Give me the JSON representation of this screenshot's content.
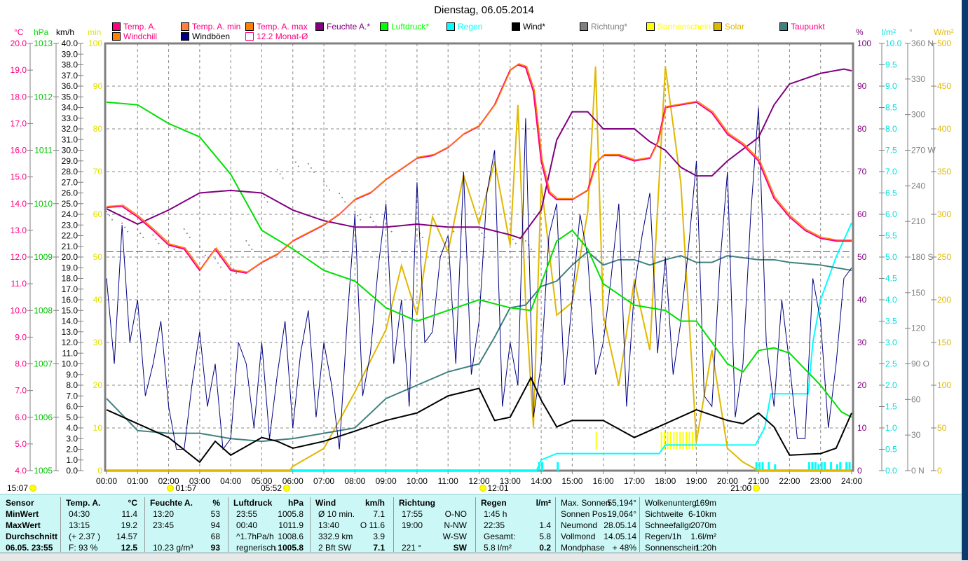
{
  "title": "Dienstag, 06.05.2014",
  "legend": [
    {
      "label": "Temp. A.",
      "color": "#ff0080",
      "text": "#ff0080"
    },
    {
      "label": "Temp. A. min",
      "color": "#ff8040",
      "text": "#ff0080"
    },
    {
      "label": "Temp. A. max",
      "color": "#ff8000",
      "text": "#ff0080"
    },
    {
      "label": "Feuchte A.*",
      "color": "#800080",
      "text": "#800080"
    },
    {
      "label": "Luftdruck*",
      "color": "#00ff00",
      "text": "#00ff00"
    },
    {
      "label": "Regen",
      "color": "#00ffff",
      "text": "#00ffff"
    },
    {
      "label": "Wind*",
      "color": "#000000",
      "text": "#000000"
    },
    {
      "label": "Richtung*",
      "color": "#808080",
      "text": "#808080"
    },
    {
      "label": "Sonnenschein",
      "color": "#ffff00",
      "text": "#ffff00"
    },
    {
      "label": "Solar",
      "color": "#e0b800",
      "text": "#e0b800"
    },
    {
      "label": "Taupunkt",
      "color": "#408080",
      "text": "#ff0080"
    },
    {
      "label": "Windchill",
      "color": "#ff8000",
      "text": "#ff0080"
    },
    {
      "label": "Windböen",
      "color": "#000080",
      "text": "#000000"
    },
    {
      "label": "12.2 Monat-Ø",
      "color": "#ffffff",
      "text": "#ff0080"
    }
  ],
  "units": {
    "c": "°C",
    "hpa": "hPa",
    "kmh": "km/h",
    "min": "min",
    "pct": "%",
    "lm2": "l/m²",
    "deg": "°",
    "wm2": "W/m²"
  },
  "chart_data": {
    "type": "line",
    "title": "Dienstag, 06.05.2014",
    "x_range": [
      0,
      24
    ],
    "x_ticks": [
      "00:00",
      "01:00",
      "02:00",
      "03:00",
      "04:00",
      "05:00",
      "06:00",
      "07:00",
      "08:00",
      "09:00",
      "10:00",
      "11:00",
      "12:00",
      "13:00",
      "14:00",
      "15:00",
      "16:00",
      "17:00",
      "18:00",
      "19:00",
      "20:00",
      "21:00",
      "22:00",
      "23:00",
      "24:00"
    ],
    "axes": {
      "c": {
        "range": [
          4,
          20
        ],
        "step": 1,
        "color": "#ff0080"
      },
      "hpa": {
        "range": [
          1005,
          1013
        ],
        "step": 1,
        "color": "#00c000"
      },
      "kmh": {
        "range": [
          0,
          40
        ],
        "step": 1,
        "color": "#000000"
      },
      "min": {
        "range": [
          0,
          100
        ],
        "step": 10,
        "color": "#e0e000"
      },
      "pct": {
        "range": [
          0,
          100
        ],
        "step": 10,
        "color": "#800080"
      },
      "lm2": {
        "range": [
          0,
          10
        ],
        "step": 0.5,
        "color": "#00e0e0"
      },
      "deg": {
        "range": [
          0,
          360
        ],
        "step": 30,
        "color": "#808080",
        "labels": {
          "0": "0  N",
          "90": "90  O",
          "180": "180 S",
          "270": "270 W",
          "360": "360 N"
        }
      },
      "wm2": {
        "range": [
          0,
          500
        ],
        "step": 50,
        "color": "#e0b800"
      }
    },
    "month_avg": 12.2,
    "series": [
      {
        "name": "Temp. A.",
        "axis": "c",
        "color": "#ff0080",
        "x": [
          0,
          0.5,
          1,
          1.5,
          2,
          2.5,
          3,
          3.5,
          4,
          4.5,
          5,
          5.5,
          6,
          6.5,
          7,
          7.5,
          8,
          8.5,
          9,
          9.5,
          10,
          10.5,
          11,
          11.5,
          12,
          12.5,
          13,
          13.25,
          13.5,
          13.75,
          14,
          14.25,
          14.5,
          15,
          15.5,
          15.75,
          16,
          16.5,
          17,
          17.5,
          17.75,
          18,
          18.5,
          19,
          19.5,
          20,
          20.5,
          21,
          21.5,
          22,
          22.5,
          23,
          23.5,
          24
        ],
        "y": [
          13.86,
          13.9,
          13.5,
          13.0,
          12.45,
          12.3,
          11.5,
          12.3,
          11.5,
          11.4,
          11.8,
          12.1,
          12.6,
          12.9,
          13.2,
          13.6,
          14.15,
          14.4,
          14.9,
          15.3,
          15.7,
          15.8,
          16.1,
          16.6,
          16.9,
          17.7,
          19.0,
          19.2,
          19.1,
          18.2,
          15.6,
          14.4,
          14.15,
          14.15,
          14.5,
          15.5,
          15.8,
          15.8,
          15.6,
          15.7,
          16.3,
          17.6,
          17.7,
          17.8,
          17.4,
          16.6,
          16.2,
          15.6,
          14.2,
          13.5,
          13.0,
          12.7,
          12.6,
          12.6
        ]
      },
      {
        "name": "Feuchte A.*",
        "axis": "pct",
        "color": "#800080",
        "x": [
          0,
          1,
          2,
          3,
          4,
          5,
          6,
          7,
          8,
          9,
          10,
          11,
          12,
          13,
          13.33,
          14,
          14.5,
          15,
          15.5,
          16,
          17,
          17.5,
          18,
          18.5,
          19,
          19.5,
          20,
          21,
          21.5,
          22,
          23,
          23.75,
          24
        ],
        "y": [
          61.3,
          57.7,
          61,
          65,
          65.6,
          65,
          61,
          58.5,
          57,
          57,
          57.7,
          57,
          57,
          55.2,
          54.4,
          61,
          77.4,
          84,
          84,
          80,
          80,
          77,
          75,
          71,
          69,
          69,
          72.5,
          78,
          85.6,
          90.5,
          93,
          94,
          93.6
        ]
      },
      {
        "name": "Luftdruck*",
        "axis": "hpa",
        "color": "#00e000",
        "x": [
          0,
          1,
          2,
          3,
          4,
          5,
          6,
          7,
          8,
          9,
          10,
          11,
          12,
          13,
          13.67,
          14,
          14.5,
          15,
          15.5,
          16,
          17,
          18,
          18.5,
          19,
          19.5,
          20,
          20.5,
          21,
          21.5,
          22,
          23,
          23.67,
          24
        ],
        "y": [
          1011.9,
          1011.85,
          1011.5,
          1011.25,
          1010.55,
          1009.5,
          1009.15,
          1008.75,
          1008.55,
          1008.05,
          1007.8,
          1008.0,
          1008.2,
          1008.05,
          1008.0,
          1008.5,
          1009.3,
          1009.5,
          1009.15,
          1008.5,
          1008.1,
          1008.0,
          1007.8,
          1007.8,
          1007.4,
          1007.0,
          1006.85,
          1007.25,
          1007.3,
          1007.2,
          1006.6,
          1006.1,
          1006.0
        ]
      },
      {
        "name": "Taupunkt",
        "axis": "c",
        "color": "#408080",
        "x": [
          0,
          1,
          2,
          3,
          4,
          5,
          6,
          7,
          8,
          9,
          10,
          11,
          12,
          12.5,
          13,
          13.5,
          14,
          14.5,
          15,
          15.5,
          16,
          16.5,
          17,
          17.5,
          18,
          18.5,
          19,
          19.5,
          20,
          21,
          21.5,
          22,
          23,
          24
        ],
        "y": [
          6.7,
          5.5,
          5.4,
          5.4,
          5.2,
          5.1,
          5.2,
          5.4,
          5.6,
          6.7,
          7.2,
          7.7,
          8.0,
          9.0,
          10.1,
          10.2,
          10.9,
          11.1,
          11.7,
          12.2,
          11.7,
          11.9,
          11.9,
          11.7,
          11.9,
          12.05,
          11.8,
          11.8,
          12.05,
          11.9,
          11.9,
          11.8,
          11.7,
          11.5
        ]
      },
      {
        "name": "Windböen",
        "axis": "kmh",
        "color": "#000080",
        "x": [
          0,
          0.25,
          0.5,
          0.75,
          1,
          1.25,
          1.5,
          1.75,
          2,
          2.25,
          2.5,
          2.75,
          3,
          3.25,
          3.5,
          3.75,
          4,
          4.25,
          4.5,
          4.75,
          5,
          5.25,
          5.5,
          5.75,
          6,
          6.25,
          6.5,
          6.75,
          7,
          7.25,
          7.5,
          7.75,
          8,
          8.25,
          8.5,
          8.75,
          9,
          9.25,
          9.5,
          9.75,
          10,
          10.25,
          10.5,
          10.75,
          11,
          11.25,
          11.5,
          11.75,
          12,
          12.25,
          12.5,
          12.75,
          13,
          13.25,
          13.5,
          13.75,
          14,
          14.25,
          14.5,
          14.75,
          15,
          15.25,
          15.5,
          15.75,
          16,
          16.25,
          16.5,
          16.75,
          17,
          17.25,
          17.5,
          17.75,
          18,
          18.25,
          18.5,
          18.75,
          19,
          19.25,
          19.5,
          19.75,
          20,
          20.25,
          20.5,
          20.75,
          21,
          21.25,
          21.5,
          21.75,
          22,
          22.25,
          22.5,
          22.75,
          23,
          23.25,
          23.5,
          23.75,
          24
        ],
        "y": [
          18,
          10,
          23,
          12,
          16,
          7,
          10,
          14,
          6,
          2,
          2,
          8,
          13,
          6,
          10,
          2,
          3,
          12,
          10,
          4,
          12,
          3,
          9,
          14,
          4,
          11,
          15,
          5,
          12,
          8,
          2,
          14,
          24,
          7,
          11,
          19,
          25,
          10,
          16,
          6,
          27,
          12,
          13,
          20,
          22,
          10,
          28,
          9,
          14,
          26,
          30,
          6,
          12,
          8,
          33,
          5,
          10,
          22,
          25,
          8,
          16,
          24,
          20,
          9,
          12,
          18,
          25,
          6,
          17,
          22,
          26,
          11,
          20,
          9,
          14,
          21,
          29,
          7,
          6,
          19,
          28,
          5,
          10,
          24,
          34,
          12,
          6,
          16,
          10,
          3,
          3,
          18,
          14,
          4,
          10,
          18,
          19
        ]
      },
      {
        "name": "Wind*",
        "axis": "kmh",
        "color": "#000000",
        "x": [
          0,
          1,
          2,
          3,
          3.5,
          4,
          5,
          5.5,
          6,
          7,
          8,
          9,
          10,
          11,
          12,
          12.5,
          13,
          13.67,
          14,
          14.5,
          15,
          16,
          17,
          18,
          19,
          20,
          20.5,
          21,
          21.5,
          22,
          23,
          23.5,
          24
        ],
        "y": [
          5.7,
          4.4,
          3.1,
          0.8,
          2.75,
          1.45,
          3.1,
          2.75,
          2.1,
          2.75,
          3.7,
          4.7,
          5.4,
          7.0,
          7.7,
          4.7,
          5.0,
          8.7,
          6.6,
          4.1,
          4.7,
          4.7,
          3.1,
          4.4,
          5.7,
          4.7,
          4.4,
          5.4,
          4.1,
          1.45,
          1.6,
          2.1,
          5.4
        ]
      },
      {
        "name": "Solar",
        "axis": "wm2",
        "color": "#e0b800",
        "x": [
          0,
          5.9,
          6,
          7,
          8,
          9,
          9.5,
          10,
          10.5,
          11,
          11.5,
          12,
          12.5,
          13,
          13.25,
          13.5,
          13.75,
          14,
          14.5,
          15,
          15.5,
          15.75,
          16,
          16.5,
          17,
          17.5,
          18,
          18.5,
          19,
          19.5,
          20,
          20.5,
          21,
          24
        ],
        "y": [
          0,
          0,
          5,
          26,
          92,
          165,
          240,
          182,
          297,
          256,
          346,
          289,
          362,
          264,
          428,
          197,
          51,
          336,
          182,
          197,
          303,
          473,
          182,
          100,
          223,
          141,
          473,
          336,
          34,
          141,
          26,
          10,
          0,
          0
        ]
      },
      {
        "name": "Regen",
        "axis": "lm2",
        "color": "#00ffff",
        "x": [
          0,
          13.85,
          14,
          14.5,
          17.8,
          18,
          20.9,
          21.2,
          21.4,
          22.6,
          22.75,
          23,
          23.5,
          24
        ],
        "y": [
          0,
          0,
          0.25,
          0.4,
          0.4,
          0.6,
          0.6,
          1.0,
          1.8,
          1.8,
          3.0,
          4.0,
          5.0,
          5.8
        ]
      }
    ],
    "direction_points": {
      "x": [
        0,
        0.5,
        1,
        1.5,
        2,
        2.5,
        3,
        3.5,
        4,
        4.5,
        5,
        5.5,
        6,
        6.5,
        7,
        7.5,
        8,
        8.5,
        9,
        10,
        11,
        12,
        13,
        13.5
      ],
      "y": [
        215,
        205,
        200,
        195,
        190,
        200,
        185,
        175,
        170,
        190,
        230,
        250,
        260,
        255,
        240,
        230,
        215,
        210,
        205,
        200,
        205,
        200,
        195,
        190
      ]
    },
    "sunshine_bars": {
      "x": [
        15.75,
        17.85,
        17.95,
        18.05,
        18.15,
        18.25,
        18.35,
        18.45,
        18.55,
        18.65,
        18.75,
        18.85,
        18.95
      ],
      "y": [
        5,
        5,
        5,
        5,
        5,
        5,
        5,
        5,
        5,
        5,
        5,
        5,
        5
      ]
    },
    "rain_bars": {
      "x": [
        13.9,
        14.0,
        14.5,
        20.9,
        21.0,
        21.1,
        21.3,
        21.5,
        22.6,
        22.7,
        22.8,
        22.9,
        23.0,
        23.1,
        23.3,
        23.5,
        23.6,
        23.8,
        23.9
      ],
      "y": [
        0.2,
        0.2,
        0.2,
        0.2,
        0.2,
        0.2,
        0.2,
        0.15,
        0.2,
        0.2,
        0.2,
        0.15,
        0.2,
        0.2,
        0.2,
        0.15,
        0.2,
        0.2,
        0.2
      ]
    }
  },
  "markers": [
    {
      "label": "15:07",
      "hour": -2.5,
      "icon": "moon-icon"
    },
    {
      "label": "01:57",
      "hour": 1.95,
      "icon": "moonset-icon"
    },
    {
      "label": "05:52",
      "hour": 5.87,
      "icon": "sunrise-icon"
    },
    {
      "label": "12:01",
      "hour": 12.0,
      "icon": "noon-icon"
    },
    {
      "label": "21:00",
      "hour": 21.0,
      "icon": "sunset-icon"
    }
  ],
  "table": {
    "col0": [
      "Sensor",
      "MinWert",
      "MaxWert",
      "Durchschnitt",
      "06.05. 23:55"
    ],
    "temp": {
      "head": [
        "Temp. A.",
        "°C"
      ],
      "rows": [
        [
          "04:30",
          "11.4"
        ],
        [
          "13:15",
          "19.2"
        ],
        [
          "(+ 2.37 )",
          "14.57"
        ],
        [
          "F: 93 %",
          "12.5"
        ]
      ]
    },
    "hum": {
      "head": [
        "Feuchte A.",
        "%"
      ],
      "rows": [
        [
          "13:20",
          "53"
        ],
        [
          "23:45",
          "94"
        ],
        [
          "",
          "68"
        ],
        [
          "10.23 g/m³",
          "93"
        ]
      ]
    },
    "press": {
      "head": [
        "Luftdruck",
        "hPa"
      ],
      "rows": [
        [
          "23:55",
          "1005.8"
        ],
        [
          "00:40",
          "1011.9"
        ],
        [
          "^1.7hPa/h",
          "1008.6"
        ],
        [
          "regnerisch",
          "↓1005.8"
        ]
      ]
    },
    "wind": {
      "head": [
        "Wind",
        "km/h"
      ],
      "rows": [
        [
          "Ø 10 min.",
          "7.1"
        ],
        [
          "13:40",
          "O 11.6"
        ],
        [
          "332.9 km",
          "3.9"
        ],
        [
          "2 Bft SW",
          "7.1"
        ]
      ]
    },
    "dir": {
      "head": [
        "Richtung",
        ""
      ],
      "rows": [
        [
          "17:55",
          "O-NO"
        ],
        [
          "19:00",
          "N-NW"
        ],
        [
          "",
          "W-SW"
        ],
        [
          "221 °",
          "SW"
        ]
      ]
    },
    "rain": {
      "head": [
        "Regen",
        "l/m²"
      ],
      "rows": [
        [
          "1:45 h",
          ""
        ],
        [
          "22:35",
          "1.4"
        ],
        [
          "Gesamt:",
          "5.8"
        ],
        [
          "5.8 l/m²",
          "0.2"
        ]
      ]
    },
    "astro": [
      [
        "Max. Sonnen",
        "55,194°"
      ],
      [
        "Sonnen Pos",
        "-19,064°"
      ],
      [
        "Neumond",
        "28.05.14"
      ],
      [
        "Vollmond",
        "14.05.14"
      ],
      [
        "Mondphase",
        "+ 48%"
      ]
    ],
    "misc": [
      [
        "Wolkenunterg",
        "169m"
      ],
      [
        "Sichtweite",
        "6-10km"
      ],
      [
        "Schneefallgr",
        "2070m"
      ],
      [
        "Regen/1h",
        "1.6l/m²"
      ],
      [
        "Sonnenschein",
        "1:20h"
      ]
    ]
  }
}
